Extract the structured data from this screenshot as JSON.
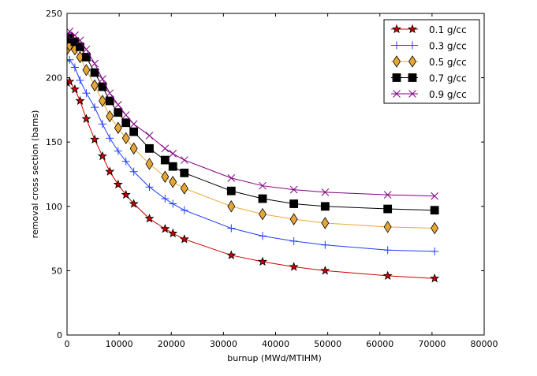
{
  "chart_data": {
    "type": "line",
    "title": "",
    "xlabel": "burnup (MWd/MTIHM)",
    "ylabel": "removal cross section (barns)",
    "xlim": [
      0,
      80000
    ],
    "ylim": [
      0,
      250
    ],
    "xticks": [
      0,
      10000,
      20000,
      30000,
      40000,
      50000,
      60000,
      70000,
      80000
    ],
    "xtick_labels": [
      "0",
      "10000",
      "20000",
      "30000",
      "40000",
      "50000",
      "60000",
      "70000",
      "80000"
    ],
    "yticks": [
      0,
      50,
      100,
      150,
      200,
      250
    ],
    "ytick_labels": [
      "0",
      "50",
      "100",
      "150",
      "200",
      "250"
    ],
    "legend_position": "top-right",
    "x": [
      0,
      500,
      1500,
      2500,
      3700,
      5300,
      6800,
      8200,
      9800,
      11300,
      12800,
      15800,
      18800,
      20300,
      22500,
      31500,
      37500,
      43500,
      49500,
      61500,
      70500
    ],
    "series": [
      {
        "name": "0.1 g/cc",
        "color": "#cc0000",
        "marker": "star",
        "values": [
          196,
          197,
          191,
          182,
          168,
          152,
          139,
          127,
          117,
          109,
          102,
          90.5,
          82.5,
          79,
          74.5,
          62,
          57,
          53,
          50,
          46,
          44
        ]
      },
      {
        "name": "0.3 g/cc",
        "color": "#1f3dff",
        "marker": "plus",
        "values": [
          213,
          214,
          208,
          198,
          188,
          177,
          164,
          153,
          143,
          135,
          127,
          115,
          106,
          102,
          97,
          83,
          77,
          73,
          70,
          66,
          65
        ]
      },
      {
        "name": "0.5 g/cc",
        "color": "#e8a735",
        "marker": "diamond",
        "values": [
          222,
          225,
          222,
          216,
          206,
          194,
          182,
          170,
          161,
          153,
          145,
          133,
          123,
          119,
          114,
          100,
          94,
          90,
          87,
          84,
          83
        ]
      },
      {
        "name": "0.7 g/cc",
        "color": "#000000",
        "marker": "square",
        "values": [
          230,
          231,
          228,
          224,
          216,
          204,
          193,
          182,
          173,
          165,
          158,
          145,
          136,
          131,
          126,
          112,
          106,
          102,
          100,
          98,
          97
        ]
      },
      {
        "name": "0.9 g/cc",
        "color": "#800080",
        "marker": "x",
        "values": [
          233,
          236,
          233,
          229,
          222,
          211,
          199,
          188,
          179,
          171,
          164,
          155,
          145,
          141,
          136,
          122,
          116,
          113,
          111,
          109,
          108
        ]
      }
    ]
  }
}
